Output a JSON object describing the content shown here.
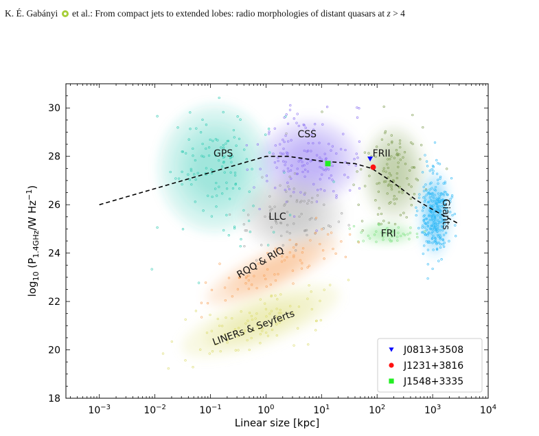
{
  "header": {
    "author": "K. É. Gabányi",
    "rest": "et al.: From compact jets to extended lobes: radio morphologies of distant quasars at",
    "z_symbol": "z",
    "z_rest": "> 4"
  },
  "chart_data": {
    "type": "scatter",
    "xlabel": "Linear size [kpc]",
    "ylabel": "log10 (P1.4GHz/W Hz−1)",
    "xscale": "log",
    "xlim": [
      0.00025,
      10000
    ],
    "ylim": [
      18,
      31
    ],
    "xticks": [
      0.001,
      0.01,
      0.1,
      1,
      10,
      100,
      1000,
      10000
    ],
    "xtick_exponents": [
      "−3",
      "−2",
      "−1",
      "0",
      "1",
      "2",
      "3",
      "4"
    ],
    "yticks": [
      18,
      20,
      22,
      24,
      26,
      28,
      30
    ],
    "grid": false,
    "legend_position": "bottom-right",
    "region_labels": [
      {
        "text": "GPS",
        "x": 0.17,
        "y": 28.1,
        "rotation": 0
      },
      {
        "text": "CSS",
        "x": 5.5,
        "y": 28.9,
        "rotation": 0
      },
      {
        "text": "FRII",
        "x": 120,
        "y": 28.1,
        "rotation": 0
      },
      {
        "text": "LLC",
        "x": 1.6,
        "y": 25.5,
        "rotation": 0
      },
      {
        "text": "Giants",
        "x": 1700,
        "y": 25.6,
        "rotation": 90
      },
      {
        "text": "FRI",
        "x": 160,
        "y": 24.8,
        "rotation": 0
      },
      {
        "text": "RQQ & RIQ",
        "x": 0.8,
        "y": 23.6,
        "rotation": -30
      },
      {
        "text": "LINERs & Seyferts",
        "x": 0.6,
        "y": 20.9,
        "rotation": -20
      }
    ],
    "dashed_line": {
      "x": [
        0.001,
        1,
        2.5,
        10,
        20,
        40,
        80,
        200,
        500,
        1000,
        3000
      ],
      "y": [
        26.0,
        28.0,
        28.0,
        27.8,
        27.75,
        27.7,
        27.5,
        26.9,
        26.2,
        25.8,
        25.2
      ]
    },
    "regions": [
      {
        "name": "GPS",
        "color": "#2ec9b0",
        "cx": 0.12,
        "cy": 27.5,
        "rx_dex": 1.0,
        "ry": 2.6,
        "opacity": 0.3
      },
      {
        "name": "CSS",
        "color": "#8a6ef0",
        "cx": 6,
        "cy": 27.8,
        "rx_dex": 0.9,
        "ry": 1.7,
        "opacity": 0.35
      },
      {
        "name": "FRII",
        "color": "#7b9a4e",
        "cx": 200,
        "cy": 27.3,
        "rx_dex": 0.55,
        "ry": 1.9,
        "opacity": 0.3
      },
      {
        "name": "LLC",
        "color": "#9b9b9b",
        "cx": 3,
        "cy": 25.6,
        "rx_dex": 0.9,
        "ry": 1.5,
        "opacity": 0.32
      },
      {
        "name": "Giants",
        "color": "#29b6f6",
        "cx": 1100,
        "cy": 25.6,
        "rx_dex": 0.25,
        "ry": 1.7,
        "opacity": 0.45
      },
      {
        "name": "FRI",
        "color": "#7ee081",
        "cx": 150,
        "cy": 24.8,
        "rx_dex": 0.5,
        "ry": 0.35,
        "opacity": 0.45
      },
      {
        "name": "RQQ & RIQ",
        "color": "#f7a25c",
        "cx": 1.3,
        "cy": 23.3,
        "rx_dex": 1.3,
        "ry": 0.8,
        "rot": -25,
        "opacity": 0.35
      },
      {
        "name": "LINERs & Seyferts",
        "color": "#dada6a",
        "cx": 0.8,
        "cy": 21.2,
        "rx_dex": 1.5,
        "ry": 1.0,
        "rot": -20,
        "opacity": 0.32
      }
    ],
    "series": [
      {
        "name": "J0813+3508",
        "marker": "triangle-down",
        "color": "#0a0aff",
        "x": [
          75
        ],
        "y": [
          27.9
        ]
      },
      {
        "name": "J1231+3816",
        "marker": "circle",
        "color": "#ff1010",
        "x": [
          85
        ],
        "y": [
          27.55
        ]
      },
      {
        "name": "J1548+3335",
        "marker": "square",
        "color": "#22ee22",
        "x": [
          13
        ],
        "y": [
          27.7
        ]
      }
    ]
  }
}
